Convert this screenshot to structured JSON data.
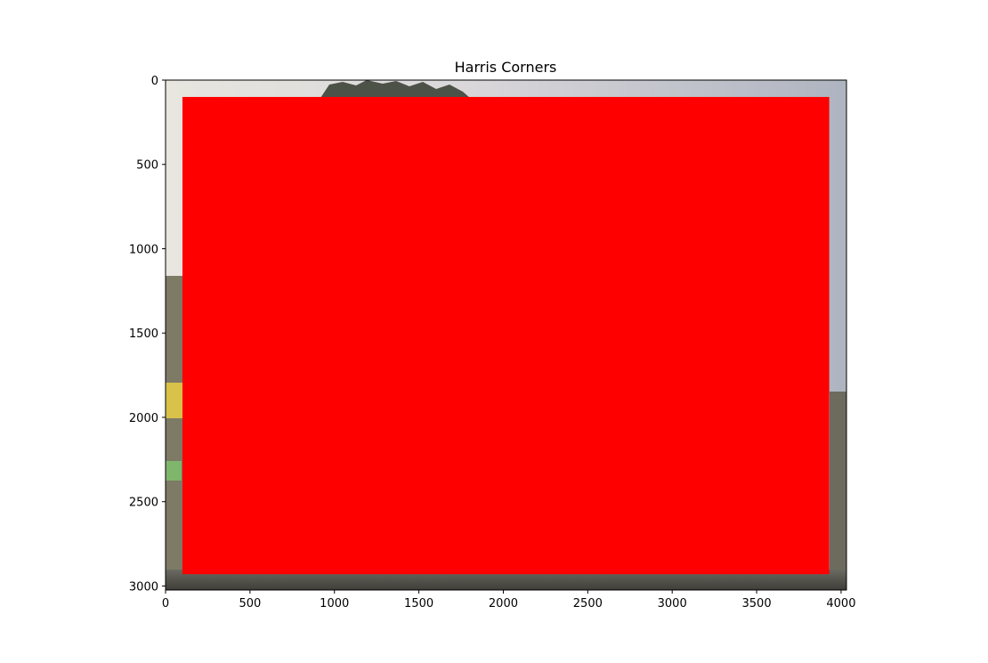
{
  "chart_data": {
    "type": "image",
    "title": "Harris Corners",
    "xlabel": "",
    "ylabel": "",
    "xlim": [
      0,
      4032
    ],
    "ylim": [
      3024,
      0
    ],
    "y_inverted": true,
    "x_ticks": [
      0,
      500,
      1000,
      1500,
      2000,
      2500,
      3000,
      3500,
      4000
    ],
    "x_tick_labels": [
      "0",
      "500",
      "1000",
      "1500",
      "2000",
      "2500",
      "3000",
      "3500",
      "4000"
    ],
    "y_ticks": [
      0,
      500,
      1000,
      1500,
      2000,
      2500,
      3000
    ],
    "y_tick_labels": [
      "0",
      "500",
      "1000",
      "1500",
      "2000",
      "2500",
      "3000"
    ],
    "grid": false,
    "legend": "none",
    "image_extent": [
      0,
      4032,
      3024,
      0
    ],
    "corner_overlay": {
      "color": "#ff0000",
      "x_range": [
        100,
        3930
      ],
      "y_range": [
        100,
        2930
      ]
    },
    "colors": {
      "overlay": "#ff0000",
      "axes": "#000000"
    }
  }
}
